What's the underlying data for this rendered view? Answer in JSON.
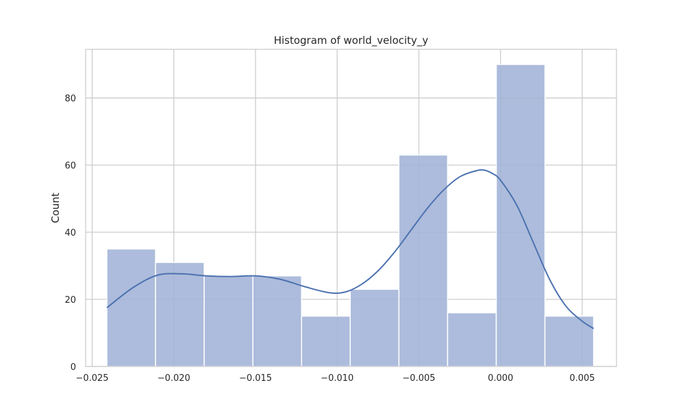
{
  "chart_data": {
    "type": "bar",
    "title": "Histogram of world_velocity_y",
    "xlabel": "",
    "ylabel": "Count",
    "xlim": [
      -0.0254,
      0.0071
    ],
    "ylim": [
      0,
      94.5
    ],
    "x_ticks": [
      -0.025,
      -0.02,
      -0.015,
      -0.01,
      -0.005,
      0.0,
      0.005
    ],
    "x_tick_labels": [
      "−0.025",
      "−0.020",
      "−0.015",
      "−0.010",
      "−0.005",
      "0.000",
      "0.005"
    ],
    "y_ticks": [
      0,
      20,
      40,
      60,
      80
    ],
    "y_tick_labels": [
      "0",
      "20",
      "40",
      "60",
      "80"
    ],
    "bin_edges": [
      -0.0241,
      -0.02112,
      -0.01814,
      -0.01516,
      -0.01218,
      -0.0092,
      -0.00622,
      -0.00324,
      -0.00026,
      0.00272,
      0.0057
    ],
    "values": [
      35,
      31,
      27,
      27,
      15,
      23,
      63,
      16,
      90,
      15
    ],
    "kde": {
      "x": [
        -0.0241,
        -0.0225,
        -0.021,
        -0.0195,
        -0.018,
        -0.0165,
        -0.015,
        -0.0135,
        -0.012,
        -0.0105,
        -0.0095,
        -0.0085,
        -0.0075,
        -0.0065,
        -0.0055,
        -0.0045,
        -0.0035,
        -0.0025,
        -0.0015,
        -0.001,
        -0.0005,
        0.0,
        0.001,
        0.002,
        0.003,
        0.004,
        0.005,
        0.0057
      ],
      "y": [
        17.5,
        23.5,
        27.2,
        27.6,
        27.0,
        26.8,
        27.0,
        26.0,
        23.8,
        22.0,
        22.2,
        24.5,
        28.5,
        34.0,
        40.5,
        47.0,
        52.5,
        56.5,
        58.3,
        58.5,
        57.5,
        55.5,
        48.0,
        37.0,
        26.0,
        18.0,
        13.5,
        11.3
      ]
    },
    "grid": true,
    "legend": "none",
    "colors": {
      "bar_fill": "#a4b5d8",
      "bar_edge": "#ffffff",
      "kde_line": "#4c72b0",
      "grid": "#cccccc",
      "spine": "#cccccc",
      "background": "#ffffff"
    }
  }
}
